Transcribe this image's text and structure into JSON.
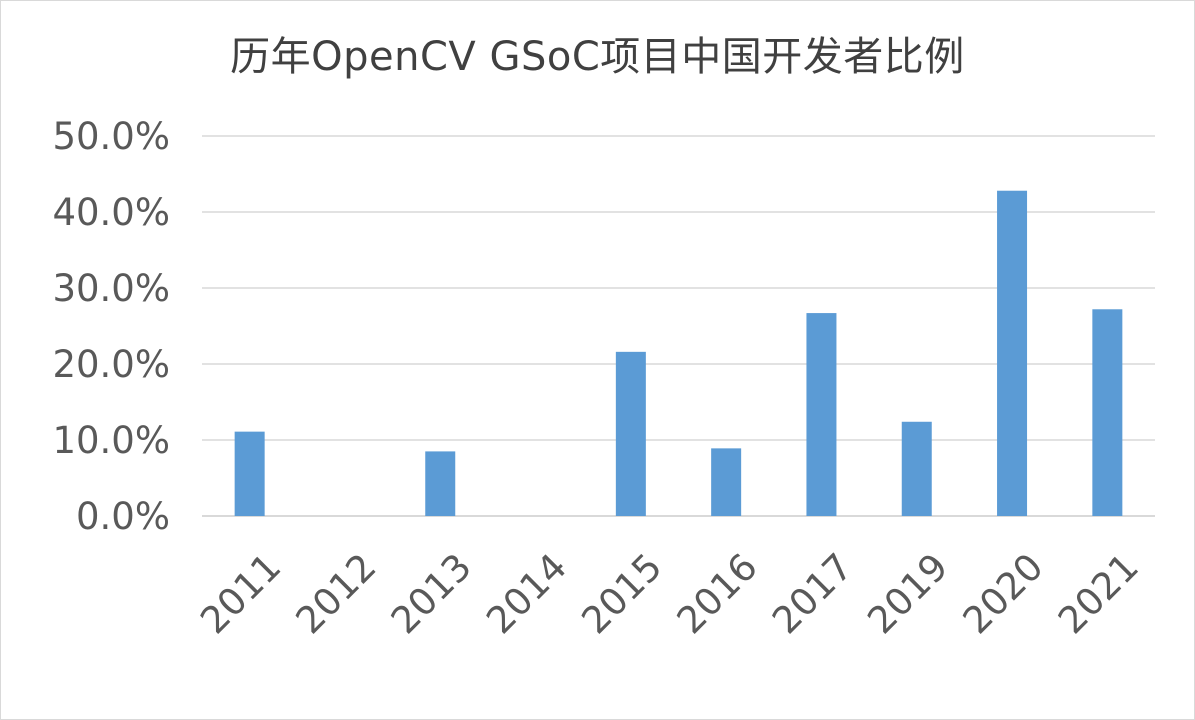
{
  "chart_data": {
    "type": "bar",
    "title": "历年OpenCV GSoC项目中国开发者比例",
    "categories": [
      "2011",
      "2012",
      "2013",
      "2014",
      "2015",
      "2016",
      "2017",
      "2019",
      "2020",
      "2021"
    ],
    "values": [
      0.111,
      0.0,
      0.085,
      0.0,
      0.216,
      0.089,
      0.267,
      0.124,
      0.428,
      0.272
    ],
    "ylim": [
      0,
      0.5
    ],
    "yticks": [
      "0.0%",
      "10.0%",
      "20.0%",
      "30.0%",
      "40.0%",
      "50.0%"
    ],
    "xlabel": "",
    "ylabel": "",
    "grid": true,
    "bar_color": "#5b9bd5",
    "gridline_color": "#d9d9d9"
  }
}
